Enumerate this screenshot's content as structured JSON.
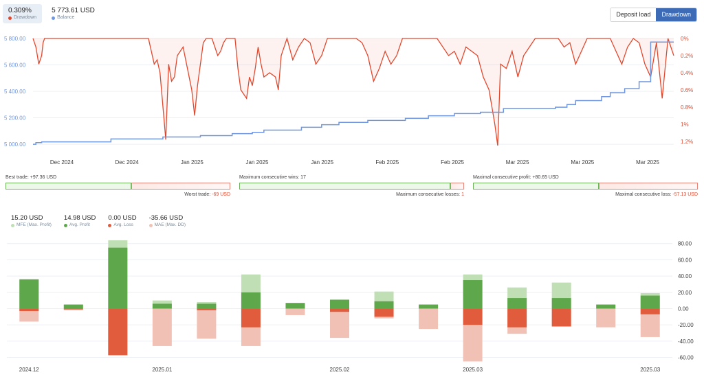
{
  "header": {
    "drawdown_value": "0.309%",
    "drawdown_label": "Drawdown",
    "balance_value": "5 773.61 USD",
    "balance_label": "Balance",
    "toggle_deposit": "Deposit load",
    "toggle_drawdown": "Drawdown",
    "colors": {
      "drawdown": "#e0482e",
      "balance": "#6f96e0"
    }
  },
  "chart_data": [
    {
      "type": "line",
      "series": [
        {
          "name": "Balance",
          "color": "#6f96e0",
          "x": [
            0,
            0.1,
            0.3,
            2.7,
            4.5,
            5.8,
            6.9,
            7.6,
            8.0,
            9.3,
            10.0,
            10.6,
            11.6,
            12.9,
            13.7,
            14.6,
            15.5,
            16.3,
            18.1,
            18.5,
            18.8,
            19.7,
            20.0,
            20.5,
            21.0,
            21.4,
            22.2
          ],
          "y": [
            5000,
            5012,
            5018,
            5040,
            5055,
            5065,
            5080,
            5090,
            5107,
            5128,
            5148,
            5165,
            5180,
            5196,
            5215,
            5232,
            5242,
            5270,
            5280,
            5300,
            5330,
            5360,
            5390,
            5420,
            5473,
            5773,
            5773
          ]
        },
        {
          "name": "Drawdown",
          "color": "#e0482e",
          "unit": "%",
          "x": [
            0,
            0.1,
            0.2,
            0.3,
            0.35,
            0.4,
            0.5,
            4.0,
            4.1,
            4.2,
            4.3,
            4.4,
            4.6,
            4.7,
            4.8,
            4.9,
            5.0,
            5.2,
            5.5,
            5.6,
            5.7,
            5.8,
            5.9,
            6.0,
            6.2,
            6.3,
            6.4,
            6.5,
            6.6,
            6.7,
            7.0,
            7.1,
            7.2,
            7.4,
            7.5,
            7.6,
            7.7,
            7.8,
            7.9,
            8.0,
            8.2,
            8.4,
            8.5,
            8.6,
            8.8,
            9.0,
            9.2,
            9.4,
            9.6,
            9.8,
            10.0,
            10.2,
            10.4,
            10.6,
            10.8,
            11.0,
            11.2,
            11.4,
            11.6,
            11.8,
            12.0,
            12.2,
            12.4,
            12.6,
            12.8,
            13.0,
            13.4,
            14.0,
            14.4,
            14.6,
            14.8,
            15.0,
            15.4,
            15.6,
            15.8,
            16.0,
            16.1,
            16.2,
            16.4,
            16.6,
            16.8,
            17.0,
            17.2,
            17.4,
            17.6,
            17.8,
            18.0,
            18.2,
            18.4,
            18.6,
            18.8,
            19.0,
            19.2,
            19.4,
            19.6,
            19.8,
            20.0,
            20.2,
            20.4,
            20.6,
            20.8,
            21.0,
            21.2,
            21.4,
            21.6,
            21.8,
            22.0,
            22.2
          ],
          "y": [
            0,
            0.1,
            0.3,
            0.2,
            0.05,
            0,
            0,
            0,
            0.15,
            0.3,
            0.25,
            0.4,
            1.18,
            0.3,
            0.5,
            0.45,
            0.2,
            0.1,
            0.6,
            0.9,
            0.55,
            0.3,
            0.05,
            0,
            0,
            0.1,
            0.2,
            0.15,
            0.05,
            0,
            0,
            0.35,
            0.6,
            0.7,
            0.45,
            0.55,
            0.35,
            0.1,
            0.3,
            0.45,
            0.4,
            0.45,
            0.6,
            0.2,
            0.0,
            0.25,
            0.1,
            0,
            0.05,
            0.3,
            0.2,
            0,
            0,
            0,
            0,
            0,
            0,
            0.05,
            0.2,
            0.5,
            0.35,
            0.15,
            0.3,
            0.2,
            0,
            0,
            0,
            0,
            0.2,
            0.15,
            0.3,
            0.1,
            0.2,
            0.45,
            0.6,
            1.0,
            1.25,
            0.3,
            0.35,
            0.15,
            0.45,
            0.2,
            0.1,
            0,
            0,
            0,
            0,
            0,
            0.1,
            0.05,
            0.3,
            0.15,
            0,
            0,
            0,
            0,
            0,
            0.15,
            0.3,
            0.1,
            0,
            0.05,
            0.3,
            0.45,
            0.05,
            0.7,
            0,
            0.2
          ]
        }
      ],
      "x_tick_labels": [
        "Dec 2024",
        "Dec 2024",
        "Jan 2025",
        "Jan 2025",
        "Jan 2025",
        "Feb 2025",
        "Feb 2025",
        "Mar 2025",
        "Mar 2025",
        "Mar 2025"
      ],
      "y_left": {
        "ticks": [
          "5 000.00",
          "5 200.00",
          "5 400.00",
          "5 600.00",
          "5 800.00"
        ],
        "values": [
          5000,
          5200,
          5400,
          5600,
          5800
        ],
        "ylim": [
          4990,
          5800
        ]
      },
      "y_right": {
        "ticks": [
          "0%",
          "0.2%",
          "0.4%",
          "0.6%",
          "0.8%",
          "1%",
          "1.2%"
        ],
        "values": [
          0,
          0.2,
          0.4,
          0.6,
          0.8,
          1.0,
          1.2
        ],
        "ylim": [
          0,
          1.25
        ]
      },
      "grid": true
    },
    {
      "type": "bar",
      "categories": [
        "2024.12",
        "",
        "",
        "2025.01",
        "",
        "",
        "",
        "2025.02",
        "",
        "",
        "2025.03",
        "",
        "",
        "",
        "2025.03"
      ],
      "category_labels_positions": [
        "2024.12",
        "2025.01",
        "2025.02",
        "2025.03",
        "2025.03"
      ],
      "series": [
        {
          "name": "MFE (Max. Profit)",
          "color": "#c1dfb5",
          "values": [
            36,
            5,
            84,
            10,
            8,
            42,
            6,
            10,
            21,
            5,
            42,
            26,
            32,
            5,
            19
          ]
        },
        {
          "name": "Avg. Profit",
          "color": "#5ea84b",
          "values": [
            36,
            5,
            75,
            6,
            6,
            20,
            7,
            11,
            9,
            5,
            35,
            13,
            13,
            5,
            16
          ]
        },
        {
          "name": "Avg. Loss",
          "color": "#e05c3d",
          "values": [
            -3,
            -1,
            -57,
            0,
            -2,
            -23,
            0,
            -4,
            -10,
            0,
            -20,
            -23,
            -22,
            0,
            -7
          ]
        },
        {
          "name": "MAE (Max. DD)",
          "color": "#f2c1b6",
          "values": [
            -16,
            -2,
            -58,
            -46,
            -37,
            -46,
            -8,
            -36,
            -12,
            -25,
            -65,
            -31,
            -21,
            -23,
            -35
          ]
        }
      ],
      "y_ticks": [
        "80.00",
        "60.00",
        "40.00",
        "20.00",
        "0.00",
        "-20.00",
        "-40.00",
        "-60.00"
      ],
      "ylim": [
        -68,
        84
      ],
      "grid": true
    }
  ],
  "stats": {
    "best_trade": "Best trade: +97.36 USD",
    "worst_trade_label": "Worst trade:",
    "worst_trade_value": "-69 USD",
    "max_cons_wins": "Maximum consecutive wins: 17",
    "max_cons_losses_label": "Maximum consecutive losses:",
    "max_cons_losses_value": "1",
    "max_cons_profit": "Maximal consecutive profit: +80.65 USD",
    "max_cons_loss_label": "Maximal consecutive loss:",
    "max_cons_loss_value": "-57.13 USD",
    "best_share": 0.56,
    "wins_share": 0.94,
    "profit_share": 0.56
  },
  "bottom_legend": [
    {
      "value": "15.20 USD",
      "label": "MFE (Max. Profit)",
      "color": "#c1dfb5"
    },
    {
      "value": "14.98 USD",
      "label": "Avg. Profit",
      "color": "#5ea84b"
    },
    {
      "value": "0.00 USD",
      "label": "Avg. Loss",
      "color": "#e05c3d"
    },
    {
      "value": "-35.66 USD",
      "label": "MAE (Max. DD)",
      "color": "#f2c1b6"
    }
  ]
}
